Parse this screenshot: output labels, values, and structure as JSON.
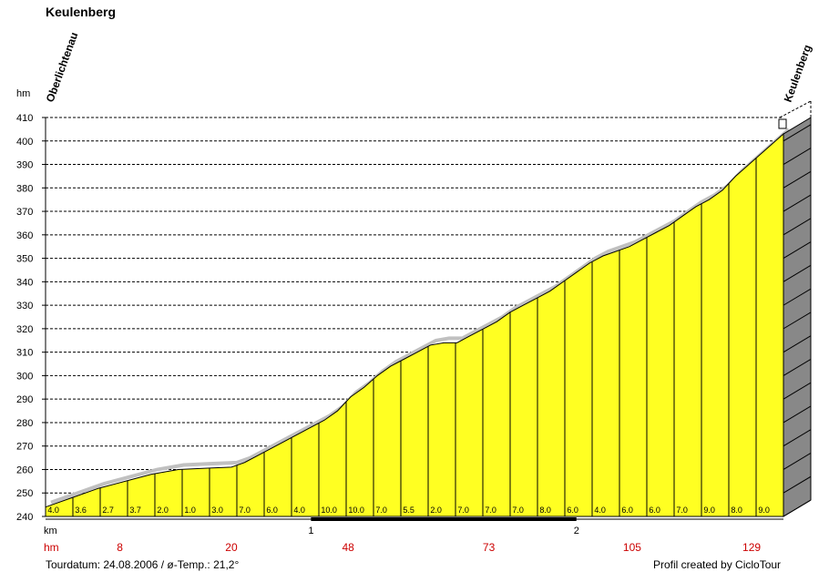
{
  "page": {
    "title": "Keulenberg",
    "tour_date": "Tourdatum: 24.08.2006  /  ø-Temp.: 21,2°",
    "credit": "Profil created by CicloTour"
  },
  "colors": {
    "profile_fill": "#ffff22",
    "shadow": "#c0c0c0",
    "side_wall": "#888888",
    "climb_label": "#cc0000"
  },
  "chart_data": {
    "type": "area",
    "ylabel": "hm",
    "xlabel": "km",
    "ylim": [
      240,
      410
    ],
    "yticks": [
      240,
      250,
      260,
      270,
      280,
      290,
      300,
      310,
      320,
      330,
      340,
      350,
      360,
      370,
      380,
      390,
      400,
      410
    ],
    "xlim": [
      0,
      2.78
    ],
    "xticks": [
      1,
      2
    ],
    "grid": true,
    "start_label": "Oberlichtenau",
    "end_label": "Keulenberg",
    "profile": [
      [
        0.0,
        244
      ],
      [
        0.1,
        248
      ],
      [
        0.2,
        252
      ],
      [
        0.3,
        255
      ],
      [
        0.4,
        258
      ],
      [
        0.5,
        260
      ],
      [
        0.6,
        260.5
      ],
      [
        0.7,
        261
      ],
      [
        0.75,
        263
      ],
      [
        0.8,
        266
      ],
      [
        0.9,
        272
      ],
      [
        1.0,
        278
      ],
      [
        1.05,
        281
      ],
      [
        1.1,
        285
      ],
      [
        1.15,
        291
      ],
      [
        1.2,
        295
      ],
      [
        1.25,
        300
      ],
      [
        1.3,
        304
      ],
      [
        1.35,
        307
      ],
      [
        1.4,
        310
      ],
      [
        1.45,
        313
      ],
      [
        1.5,
        314
      ],
      [
        1.55,
        314
      ],
      [
        1.6,
        317
      ],
      [
        1.65,
        320
      ],
      [
        1.7,
        323
      ],
      [
        1.75,
        327
      ],
      [
        1.8,
        330
      ],
      [
        1.85,
        333
      ],
      [
        1.9,
        336
      ],
      [
        1.95,
        340
      ],
      [
        2.0,
        344
      ],
      [
        2.05,
        348
      ],
      [
        2.1,
        351
      ],
      [
        2.15,
        353
      ],
      [
        2.2,
        355
      ],
      [
        2.25,
        358
      ],
      [
        2.3,
        361
      ],
      [
        2.35,
        364
      ],
      [
        2.4,
        368
      ],
      [
        2.45,
        372
      ],
      [
        2.5,
        375
      ],
      [
        2.55,
        379
      ],
      [
        2.6,
        385
      ],
      [
        2.65,
        390
      ],
      [
        2.7,
        395
      ],
      [
        2.75,
        400
      ],
      [
        2.78,
        403
      ]
    ],
    "gradients": [
      "4.0",
      "3.6",
      "2.7",
      "3.7",
      "2.0",
      "1.0",
      "3.0",
      "7.0",
      "6.0",
      "4.0",
      "10.0",
      "10.0",
      "7.0",
      "5.5",
      "2.0",
      "7.0",
      "7.0",
      "7.0",
      "8.0",
      "6.0",
      "4.0",
      "6.0",
      "6.0",
      "7.0",
      "9.0",
      "8.0",
      "9.0"
    ],
    "climb_row_label": "hm",
    "climb_markers": [
      {
        "x": 0.28,
        "label": "8"
      },
      {
        "x": 0.7,
        "label": "20"
      },
      {
        "x": 1.14,
        "label": "48"
      },
      {
        "x": 1.67,
        "label": "73"
      },
      {
        "x": 2.21,
        "label": "105"
      },
      {
        "x": 2.66,
        "label": "129"
      }
    ],
    "scale_bar": [
      1.0,
      2.0
    ]
  }
}
